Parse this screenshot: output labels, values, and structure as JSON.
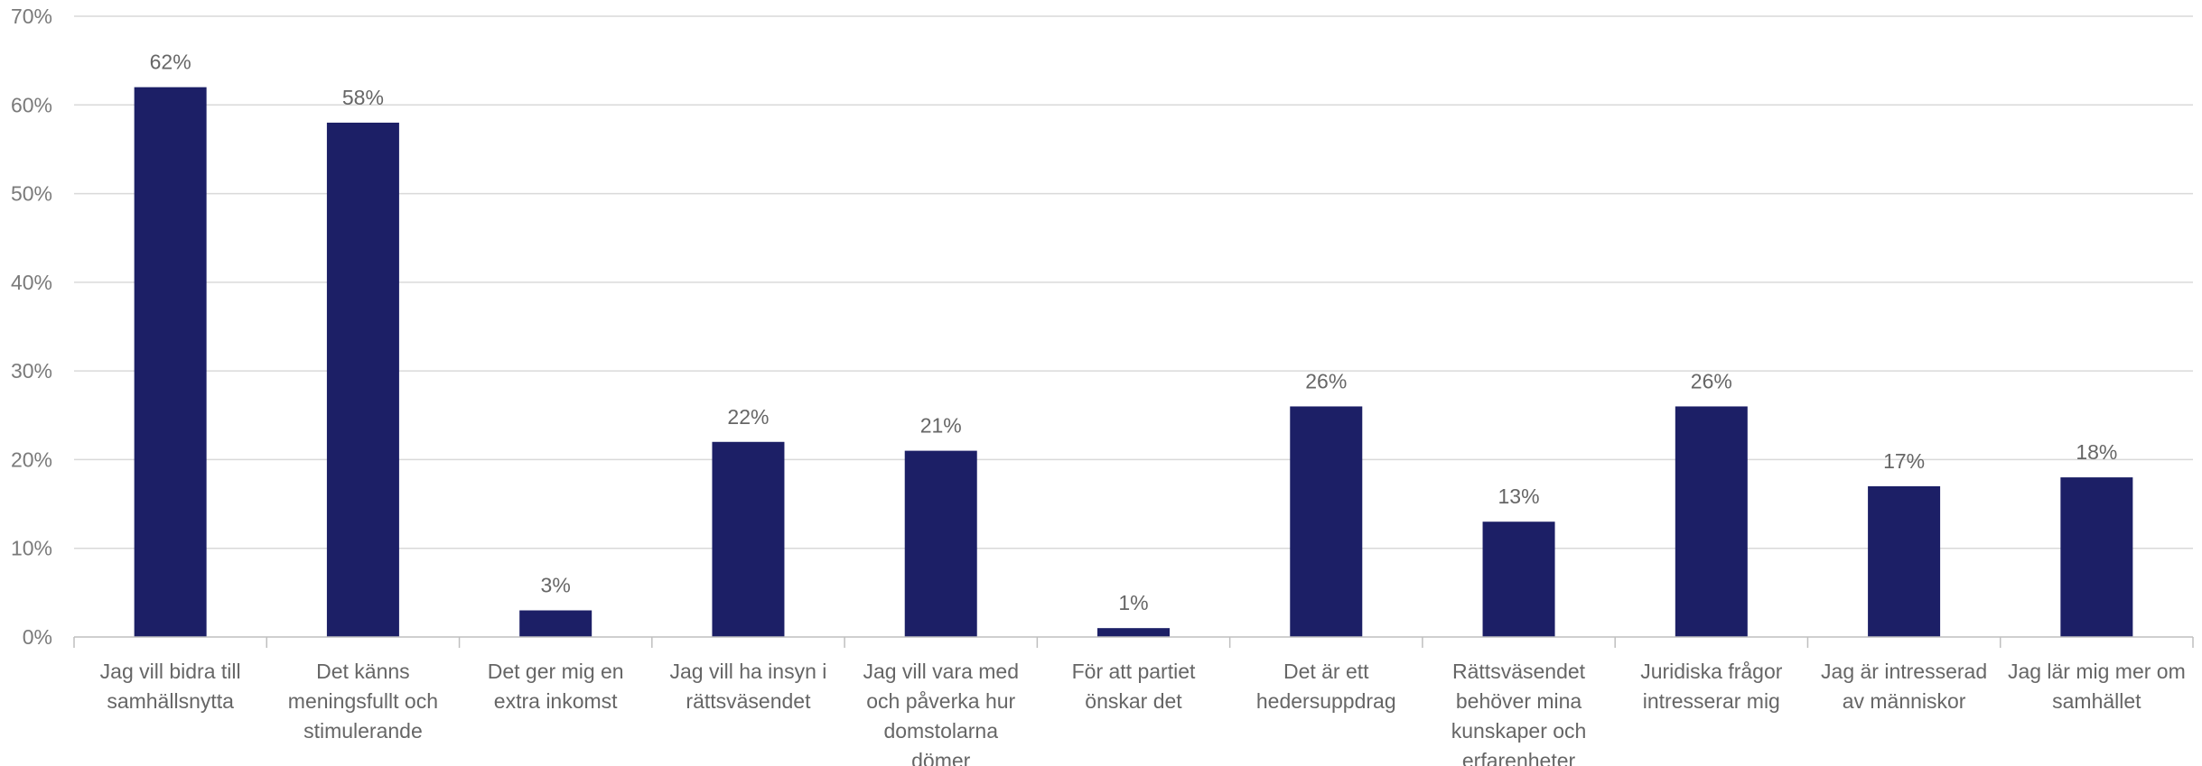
{
  "chart_data": {
    "type": "bar",
    "categories": [
      [
        "Jag vill bidra till",
        "samhällsnytta"
      ],
      [
        "Det känns",
        "meningsfullt och",
        "stimulerande"
      ],
      [
        "Det ger mig en",
        "extra inkomst"
      ],
      [
        "Jag vill ha insyn i",
        "rättsväsendet"
      ],
      [
        "Jag vill vara med",
        "och påverka hur",
        "domstolarna",
        "dömer"
      ],
      [
        "För att partiet",
        "önskar det"
      ],
      [
        "Det är ett",
        "hedersuppdrag"
      ],
      [
        "Rättsväsendet",
        "behöver mina",
        "kunskaper och",
        "erfarenheter"
      ],
      [
        "Juridiska frågor",
        "intresserar mig"
      ],
      [
        "Jag är intresserad",
        "av människor"
      ],
      [
        "Jag lär mig mer om",
        "samhället"
      ]
    ],
    "values": [
      62,
      58,
      3,
      22,
      21,
      1,
      26,
      13,
      26,
      17,
      18
    ],
    "data_labels": [
      "62%",
      "58%",
      "3%",
      "22%",
      "21%",
      "1%",
      "26%",
      "13%",
      "26%",
      "17%",
      "18%"
    ],
    "yticks": [
      "0%",
      "10%",
      "20%",
      "30%",
      "40%",
      "50%",
      "60%",
      "70%"
    ],
    "ylim": [
      0,
      70
    ],
    "grid": true,
    "legend": "none",
    "colors": {
      "bar": "#1c1f66",
      "grid": "#d9d9d9",
      "axis": "#bfbfbf"
    }
  }
}
